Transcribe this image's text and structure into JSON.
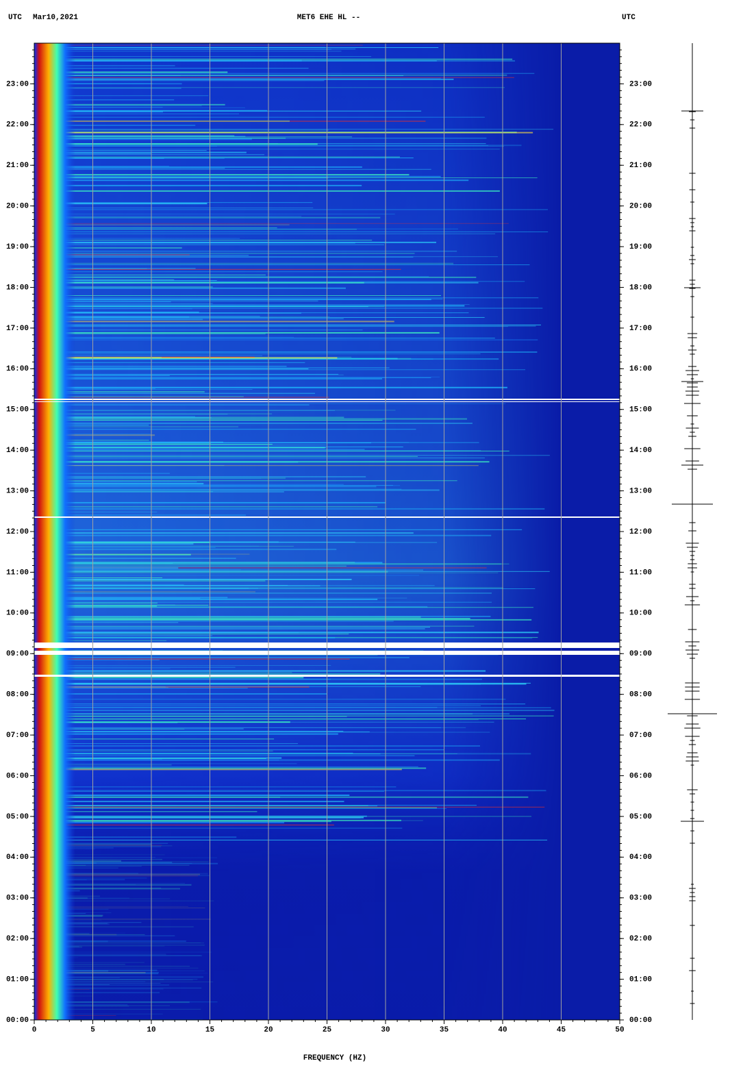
{
  "chart_data": {
    "type": "spectrogram",
    "title": "MET6 EHE HL --",
    "date": "Mar10,2021",
    "timezone_left": "UTC",
    "timezone_right": "UTC",
    "x_label": "FREQUENCY (HZ)",
    "xlim": [
      0,
      50
    ],
    "xticks": [
      0,
      5,
      10,
      15,
      20,
      25,
      30,
      35,
      40,
      45,
      50
    ],
    "ylim": [
      0,
      24
    ],
    "yticks": [
      {
        "value": 0,
        "label": "00:00"
      },
      {
        "value": 1,
        "label": "01:00"
      },
      {
        "value": 2,
        "label": "02:00"
      },
      {
        "value": 3,
        "label": "03:00"
      },
      {
        "value": 4,
        "label": "04:00"
      },
      {
        "value": 5,
        "label": "05:00"
      },
      {
        "value": 6,
        "label": "06:00"
      },
      {
        "value": 7,
        "label": "07:00"
      },
      {
        "value": 8,
        "label": "08:00"
      },
      {
        "value": 9,
        "label": "09:00"
      },
      {
        "value": 10,
        "label": "10:00"
      },
      {
        "value": 11,
        "label": "11:00"
      },
      {
        "value": 12,
        "label": "12:00"
      },
      {
        "value": 13,
        "label": "13:00"
      },
      {
        "value": 14,
        "label": "14:00"
      },
      {
        "value": 15,
        "label": "15:00"
      },
      {
        "value": 16,
        "label": "16:00"
      },
      {
        "value": 17,
        "label": "17:00"
      },
      {
        "value": 18,
        "label": "18:00"
      },
      {
        "value": 19,
        "label": "19:00"
      },
      {
        "value": 20,
        "label": "20:00"
      },
      {
        "value": 21,
        "label": "21:00"
      },
      {
        "value": 22,
        "label": "22:00"
      },
      {
        "value": 23,
        "label": "23:00"
      }
    ],
    "grid": true
  }
}
